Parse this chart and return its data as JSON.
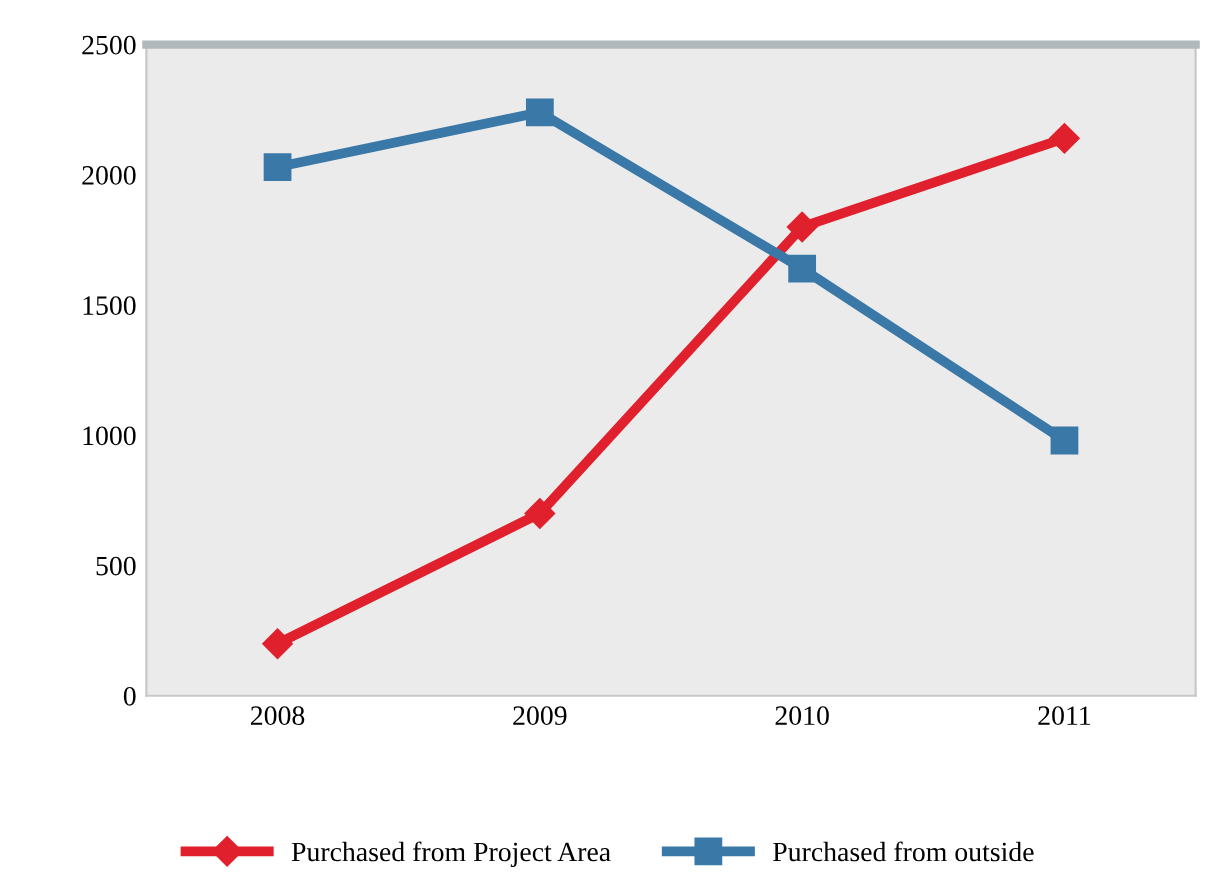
{
  "chart_data": {
    "type": "line",
    "categories": [
      "2008",
      "2009",
      "2010",
      "2011"
    ],
    "series": [
      {
        "name": "Purchased from Project Area",
        "color": "#e0202c",
        "marker": "diamond",
        "values": [
          200,
          700,
          1800,
          2140
        ]
      },
      {
        "name": "Purchased from outside",
        "color": "#3a78a8",
        "marker": "square",
        "values": [
          2030,
          2240,
          1640,
          980
        ]
      }
    ],
    "ylim": [
      0,
      2500
    ],
    "yticks": [
      0,
      500,
      1000,
      1500,
      2000,
      2500
    ],
    "grid": false,
    "legend": "bottom"
  }
}
